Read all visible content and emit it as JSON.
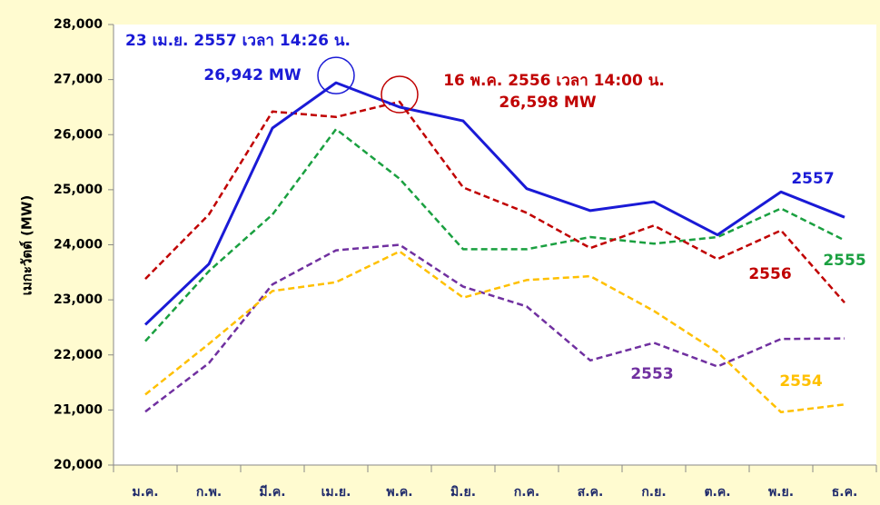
{
  "chart_data": {
    "type": "line",
    "y_axis_label": "เมกะวัตต์ (MW)",
    "categories": [
      "ม.ค.",
      "ก.พ.",
      "มี.ค.",
      "เม.ย.",
      "พ.ค.",
      "มิ.ย.",
      "ก.ค.",
      "ส.ค.",
      "ก.ย.",
      "ต.ค.",
      "พ.ย.",
      "ธ.ค."
    ],
    "series": [
      {
        "name": "2557",
        "color": "#1a1ad6",
        "line_style": "solid",
        "values": [
          22550,
          23650,
          26120,
          26942,
          26500,
          26250,
          25020,
          24620,
          24780,
          24180,
          24960,
          24500
        ]
      },
      {
        "name": "2556",
        "color": "#c00000",
        "line_style": "dashed",
        "values": [
          23380,
          24550,
          26420,
          26320,
          26598,
          25040,
          24580,
          23940,
          24350,
          23740,
          24260,
          22950
        ]
      },
      {
        "name": "2555",
        "color": "#1aa040",
        "line_style": "dashed",
        "values": [
          22250,
          23520,
          24550,
          26100,
          25200,
          23920,
          23920,
          24140,
          24020,
          24140,
          24660,
          24080
        ]
      },
      {
        "name": "2554",
        "color": "#ffc000",
        "line_style": "dashed",
        "values": [
          21280,
          22200,
          23160,
          23320,
          23880,
          23040,
          23360,
          23430,
          22800,
          22050,
          20960,
          21100
        ]
      },
      {
        "name": "2553",
        "color": "#7030a0",
        "line_style": "dashed",
        "values": [
          20970,
          21850,
          23280,
          23900,
          24000,
          23240,
          22880,
          21900,
          22220,
          21790,
          22290,
          22300
        ]
      }
    ],
    "annotations": [
      {
        "lines": [
          "23 เม.ย. 2557  เวลา 14:26 น.",
          "26,942  MW"
        ],
        "color": "#1a1ad6"
      },
      {
        "lines": [
          "16 พ.ค. 2556  เวลา 14:00 น.",
          "26,598 MW"
        ],
        "color": "#c00000"
      }
    ],
    "ylim": [
      20000,
      28000
    ],
    "yticks": [
      {
        "value": 20000,
        "label": "20,000"
      },
      {
        "value": 21000,
        "label": "21,000"
      },
      {
        "value": 22000,
        "label": "22,000"
      },
      {
        "value": 23000,
        "label": "23,000"
      },
      {
        "value": 24000,
        "label": "24,000"
      },
      {
        "value": 25000,
        "label": "25,000"
      },
      {
        "value": 26000,
        "label": "26,000"
      },
      {
        "value": 27000,
        "label": "27,000"
      },
      {
        "value": 28000,
        "label": "28,000"
      }
    ],
    "grid": false
  }
}
